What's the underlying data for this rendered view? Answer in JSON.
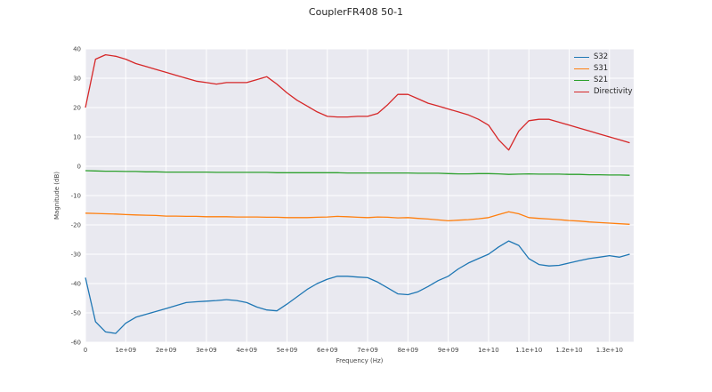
{
  "chart_data": {
    "type": "line",
    "title": "CouplerFR408 50-1",
    "xlabel": "Frequency (Hz)",
    "ylabel": "Magnitude (dB)",
    "x_unit": "GHz",
    "xlim": [
      0,
      13.6
    ],
    "ylim": [
      -60,
      40
    ],
    "grid": "on",
    "legend_position": "upper right",
    "colors": {
      "plot_bg": "#e9e9f0",
      "grid": "#ffffff",
      "tick": "#444444",
      "title": "#262626"
    },
    "xticks": [
      {
        "value": 0,
        "label": "0"
      },
      {
        "value": 1,
        "label": "1e+09"
      },
      {
        "value": 2,
        "label": "2e+09"
      },
      {
        "value": 3,
        "label": "3e+09"
      },
      {
        "value": 4,
        "label": "4e+09"
      },
      {
        "value": 5,
        "label": "5e+09"
      },
      {
        "value": 6,
        "label": "6e+09"
      },
      {
        "value": 7,
        "label": "7e+09"
      },
      {
        "value": 8,
        "label": "8e+09"
      },
      {
        "value": 9,
        "label": "9e+09"
      },
      {
        "value": 10,
        "label": "1e+10"
      },
      {
        "value": 11,
        "label": "1.1e+10"
      },
      {
        "value": 12,
        "label": "1.2e+10"
      },
      {
        "value": 13,
        "label": "1.3e+10"
      }
    ],
    "yticks": [
      {
        "value": -60,
        "label": "-60"
      },
      {
        "value": -50,
        "label": "-50"
      },
      {
        "value": -40,
        "label": "-40"
      },
      {
        "value": -30,
        "label": "-30"
      },
      {
        "value": -20,
        "label": "-20"
      },
      {
        "value": -10,
        "label": "-10"
      },
      {
        "value": 0,
        "label": "0"
      },
      {
        "value": 10,
        "label": "10"
      },
      {
        "value": 20,
        "label": "20"
      },
      {
        "value": 30,
        "label": "30"
      },
      {
        "value": 40,
        "label": "40"
      }
    ],
    "x": [
      0,
      0.25,
      0.5,
      0.75,
      1,
      1.25,
      1.5,
      1.75,
      2,
      2.25,
      2.5,
      2.75,
      3,
      3.25,
      3.5,
      3.75,
      4,
      4.25,
      4.5,
      4.75,
      5,
      5.25,
      5.5,
      5.75,
      6,
      6.25,
      6.5,
      6.75,
      7,
      7.25,
      7.5,
      7.75,
      8,
      8.25,
      8.5,
      8.75,
      9,
      9.25,
      9.5,
      9.75,
      10,
      10.25,
      10.5,
      10.75,
      11,
      11.25,
      11.5,
      11.75,
      12,
      12.25,
      12.5,
      12.75,
      13,
      13.25,
      13.5
    ],
    "series": [
      {
        "name": "S32",
        "color": "#1f77b4",
        "y": [
          -38,
          -53,
          -56.5,
          -57,
          -53.5,
          -51.5,
          -50.5,
          -49.5,
          -48.5,
          -47.5,
          -46.5,
          -46.2,
          -46,
          -45.8,
          -45.5,
          -45.8,
          -46.5,
          -48,
          -49,
          -49.3,
          -47,
          -44.5,
          -42,
          -40,
          -38.5,
          -37.5,
          -37.5,
          -37.8,
          -38,
          -39.5,
          -41.5,
          -43.5,
          -43.8,
          -42.8,
          -41,
          -39,
          -37.5,
          -35,
          -33,
          -31.5,
          -30,
          -27.5,
          -25.5,
          -27,
          -31.5,
          -33.5,
          -34,
          -33.8,
          -33,
          -32.2,
          -31.5,
          -31,
          -30.5,
          -31,
          -30
        ]
      },
      {
        "name": "S31",
        "color": "#ff7f0e",
        "y": [
          -16,
          -16.1,
          -16.2,
          -16.3,
          -16.5,
          -16.6,
          -16.7,
          -16.8,
          -17,
          -17,
          -17.1,
          -17.1,
          -17.2,
          -17.2,
          -17.2,
          -17.3,
          -17.3,
          -17.3,
          -17.4,
          -17.4,
          -17.5,
          -17.5,
          -17.5,
          -17.4,
          -17.3,
          -17.1,
          -17.2,
          -17.4,
          -17.5,
          -17.3,
          -17.4,
          -17.6,
          -17.5,
          -17.8,
          -18,
          -18.3,
          -18.6,
          -18.4,
          -18.2,
          -17.9,
          -17.5,
          -16.5,
          -15.5,
          -16.2,
          -17.5,
          -17.8,
          -18,
          -18.2,
          -18.5,
          -18.7,
          -19,
          -19.2,
          -19.4,
          -19.6,
          -19.8
        ]
      },
      {
        "name": "S21",
        "color": "#2ca02c",
        "y": [
          -1.5,
          -1.6,
          -1.7,
          -1.7,
          -1.8,
          -1.8,
          -1.9,
          -1.9,
          -2,
          -2,
          -2,
          -2,
          -2,
          -2.1,
          -2.1,
          -2.1,
          -2.1,
          -2.1,
          -2.1,
          -2.2,
          -2.2,
          -2.2,
          -2.2,
          -2.2,
          -2.2,
          -2.2,
          -2.3,
          -2.3,
          -2.3,
          -2.3,
          -2.3,
          -2.3,
          -2.3,
          -2.4,
          -2.4,
          -2.4,
          -2.5,
          -2.6,
          -2.6,
          -2.5,
          -2.5,
          -2.6,
          -2.8,
          -2.7,
          -2.6,
          -2.7,
          -2.7,
          -2.7,
          -2.8,
          -2.8,
          -2.9,
          -2.9,
          -3,
          -3,
          -3.1
        ]
      },
      {
        "name": "Directivity",
        "color": "#d62728",
        "y": [
          20,
          36.5,
          38,
          37.5,
          36.5,
          35,
          34,
          33,
          32,
          31,
          30,
          29,
          28.5,
          28,
          28.5,
          28.5,
          28.5,
          29.5,
          30.5,
          28,
          25,
          22.5,
          20.5,
          18.5,
          17,
          16.8,
          16.8,
          17,
          17,
          18,
          21,
          24.5,
          24.5,
          23,
          21.5,
          20.5,
          19.5,
          18.5,
          17.5,
          16,
          14,
          9,
          5.5,
          12,
          15.5,
          16,
          16,
          15,
          14,
          13,
          12,
          11,
          10,
          9,
          8
        ]
      }
    ]
  }
}
